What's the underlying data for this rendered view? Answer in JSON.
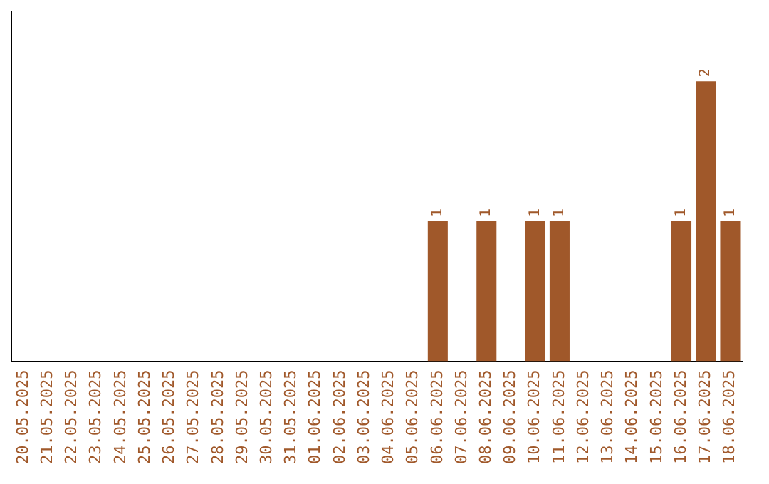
{
  "chart_data": {
    "type": "bar",
    "categories": [
      "20.05.2025",
      "21.05.2025",
      "22.05.2025",
      "23.05.2025",
      "24.05.2025",
      "25.05.2025",
      "26.05.2025",
      "27.05.2025",
      "28.05.2025",
      "29.05.2025",
      "30.05.2025",
      "31.05.2025",
      "01.06.2025",
      "02.06.2025",
      "03.06.2025",
      "04.06.2025",
      "05.06.2025",
      "06.06.2025",
      "07.06.2025",
      "08.06.2025",
      "09.06.2025",
      "10.06.2025",
      "11.06.2025",
      "12.06.2025",
      "13.06.2025",
      "14.06.2025",
      "15.06.2025",
      "16.06.2025",
      "17.06.2025",
      "18.06.2025"
    ],
    "values": [
      null,
      null,
      null,
      null,
      null,
      null,
      null,
      null,
      null,
      null,
      null,
      null,
      null,
      null,
      null,
      null,
      null,
      1,
      null,
      1,
      null,
      1,
      1,
      null,
      null,
      null,
      null,
      1,
      2,
      1
    ],
    "data_labels": true,
    "color": "#a0582a",
    "tick_labels": "x",
    "grid": false,
    "legend": false
  }
}
